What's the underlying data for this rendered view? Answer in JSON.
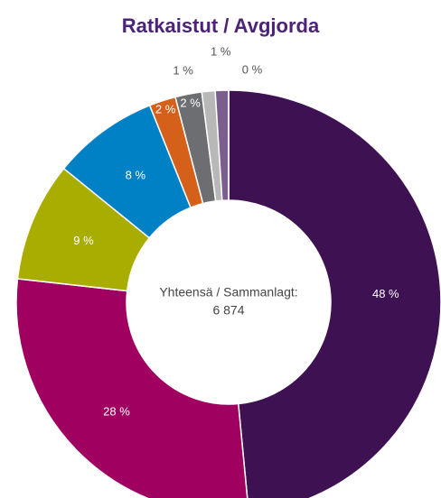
{
  "chart_data": {
    "type": "donut",
    "title": "Ratkaistut / Avgjorda",
    "center_label": "Yhteensä / Sammanlagt:",
    "center_value": "6 874",
    "values": [
      48,
      28,
      9,
      8,
      2,
      2,
      1,
      1,
      0
    ],
    "value_labels": [
      "48 %",
      "28 %",
      "9 %",
      "8 %",
      "2 %",
      "2 %",
      "1 %",
      "1 %",
      "0 %"
    ],
    "colors": [
      "#3d1152",
      "#a0005f",
      "#a9ad00",
      "#0081c6",
      "#d4601a",
      "#6d6e71",
      "#b8b8b8",
      "#7b5d8e",
      "#c9c9c9"
    ]
  }
}
